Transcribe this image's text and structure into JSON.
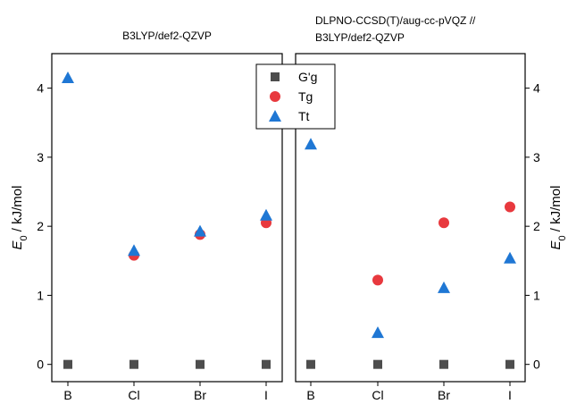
{
  "colors": {
    "Gg": "#4d4d4d",
    "Tg": "#e8393e",
    "Tt": "#1f77d4"
  },
  "legend": {
    "placement": "top-center",
    "entries": [
      {
        "key": "Gg",
        "label": "G'g",
        "marker": "square"
      },
      {
        "key": "Tg",
        "label": "Tg",
        "marker": "circle"
      },
      {
        "key": "Tt",
        "label": "Tt",
        "marker": "triangle"
      }
    ]
  },
  "chart_data": [
    {
      "type": "scatter",
      "title_lines": [
        "B3LYP/def2-QZVP"
      ],
      "categories": [
        "B",
        "Cl",
        "Br",
        "I"
      ],
      "ylabel_italic": "E",
      "ylabel_sub": "0",
      "ylabel_rest": " / kJ/mol",
      "ylim": [
        -0.25,
        4.5
      ],
      "yticks": [
        0,
        1,
        2,
        3,
        4
      ],
      "ylabel_side": "left",
      "grid": false,
      "series": [
        {
          "name": "G'g",
          "key": "Gg",
          "marker": "square",
          "values": [
            0,
            0,
            0,
            0
          ]
        },
        {
          "name": "Tg",
          "key": "Tg",
          "marker": "circle",
          "values": [
            null,
            1.58,
            1.88,
            2.05
          ]
        },
        {
          "name": "Tt",
          "key": "Tt",
          "marker": "triangle",
          "values": [
            4.15,
            1.65,
            1.93,
            2.16
          ]
        }
      ]
    },
    {
      "type": "scatter",
      "title_lines": [
        "DLPNO-CCSD(T)/aug-cc-pVQZ //",
        "B3LYP/def2-QZVP"
      ],
      "categories": [
        "B",
        "Cl",
        "Br",
        "I"
      ],
      "ylabel_italic": "E",
      "ylabel_sub": "0",
      "ylabel_rest": " / kJ/mol",
      "ylim": [
        -0.25,
        4.5
      ],
      "yticks": [
        0,
        1,
        2,
        3,
        4
      ],
      "ylabel_side": "right",
      "grid": false,
      "series": [
        {
          "name": "G'g",
          "key": "Gg",
          "marker": "square",
          "values": [
            0,
            0,
            0,
            0
          ]
        },
        {
          "name": "Tg",
          "key": "Tg",
          "marker": "circle",
          "values": [
            null,
            1.22,
            2.05,
            2.28
          ]
        },
        {
          "name": "Tt",
          "key": "Tt",
          "marker": "triangle",
          "values": [
            3.19,
            0.46,
            1.11,
            1.54
          ]
        }
      ]
    }
  ]
}
